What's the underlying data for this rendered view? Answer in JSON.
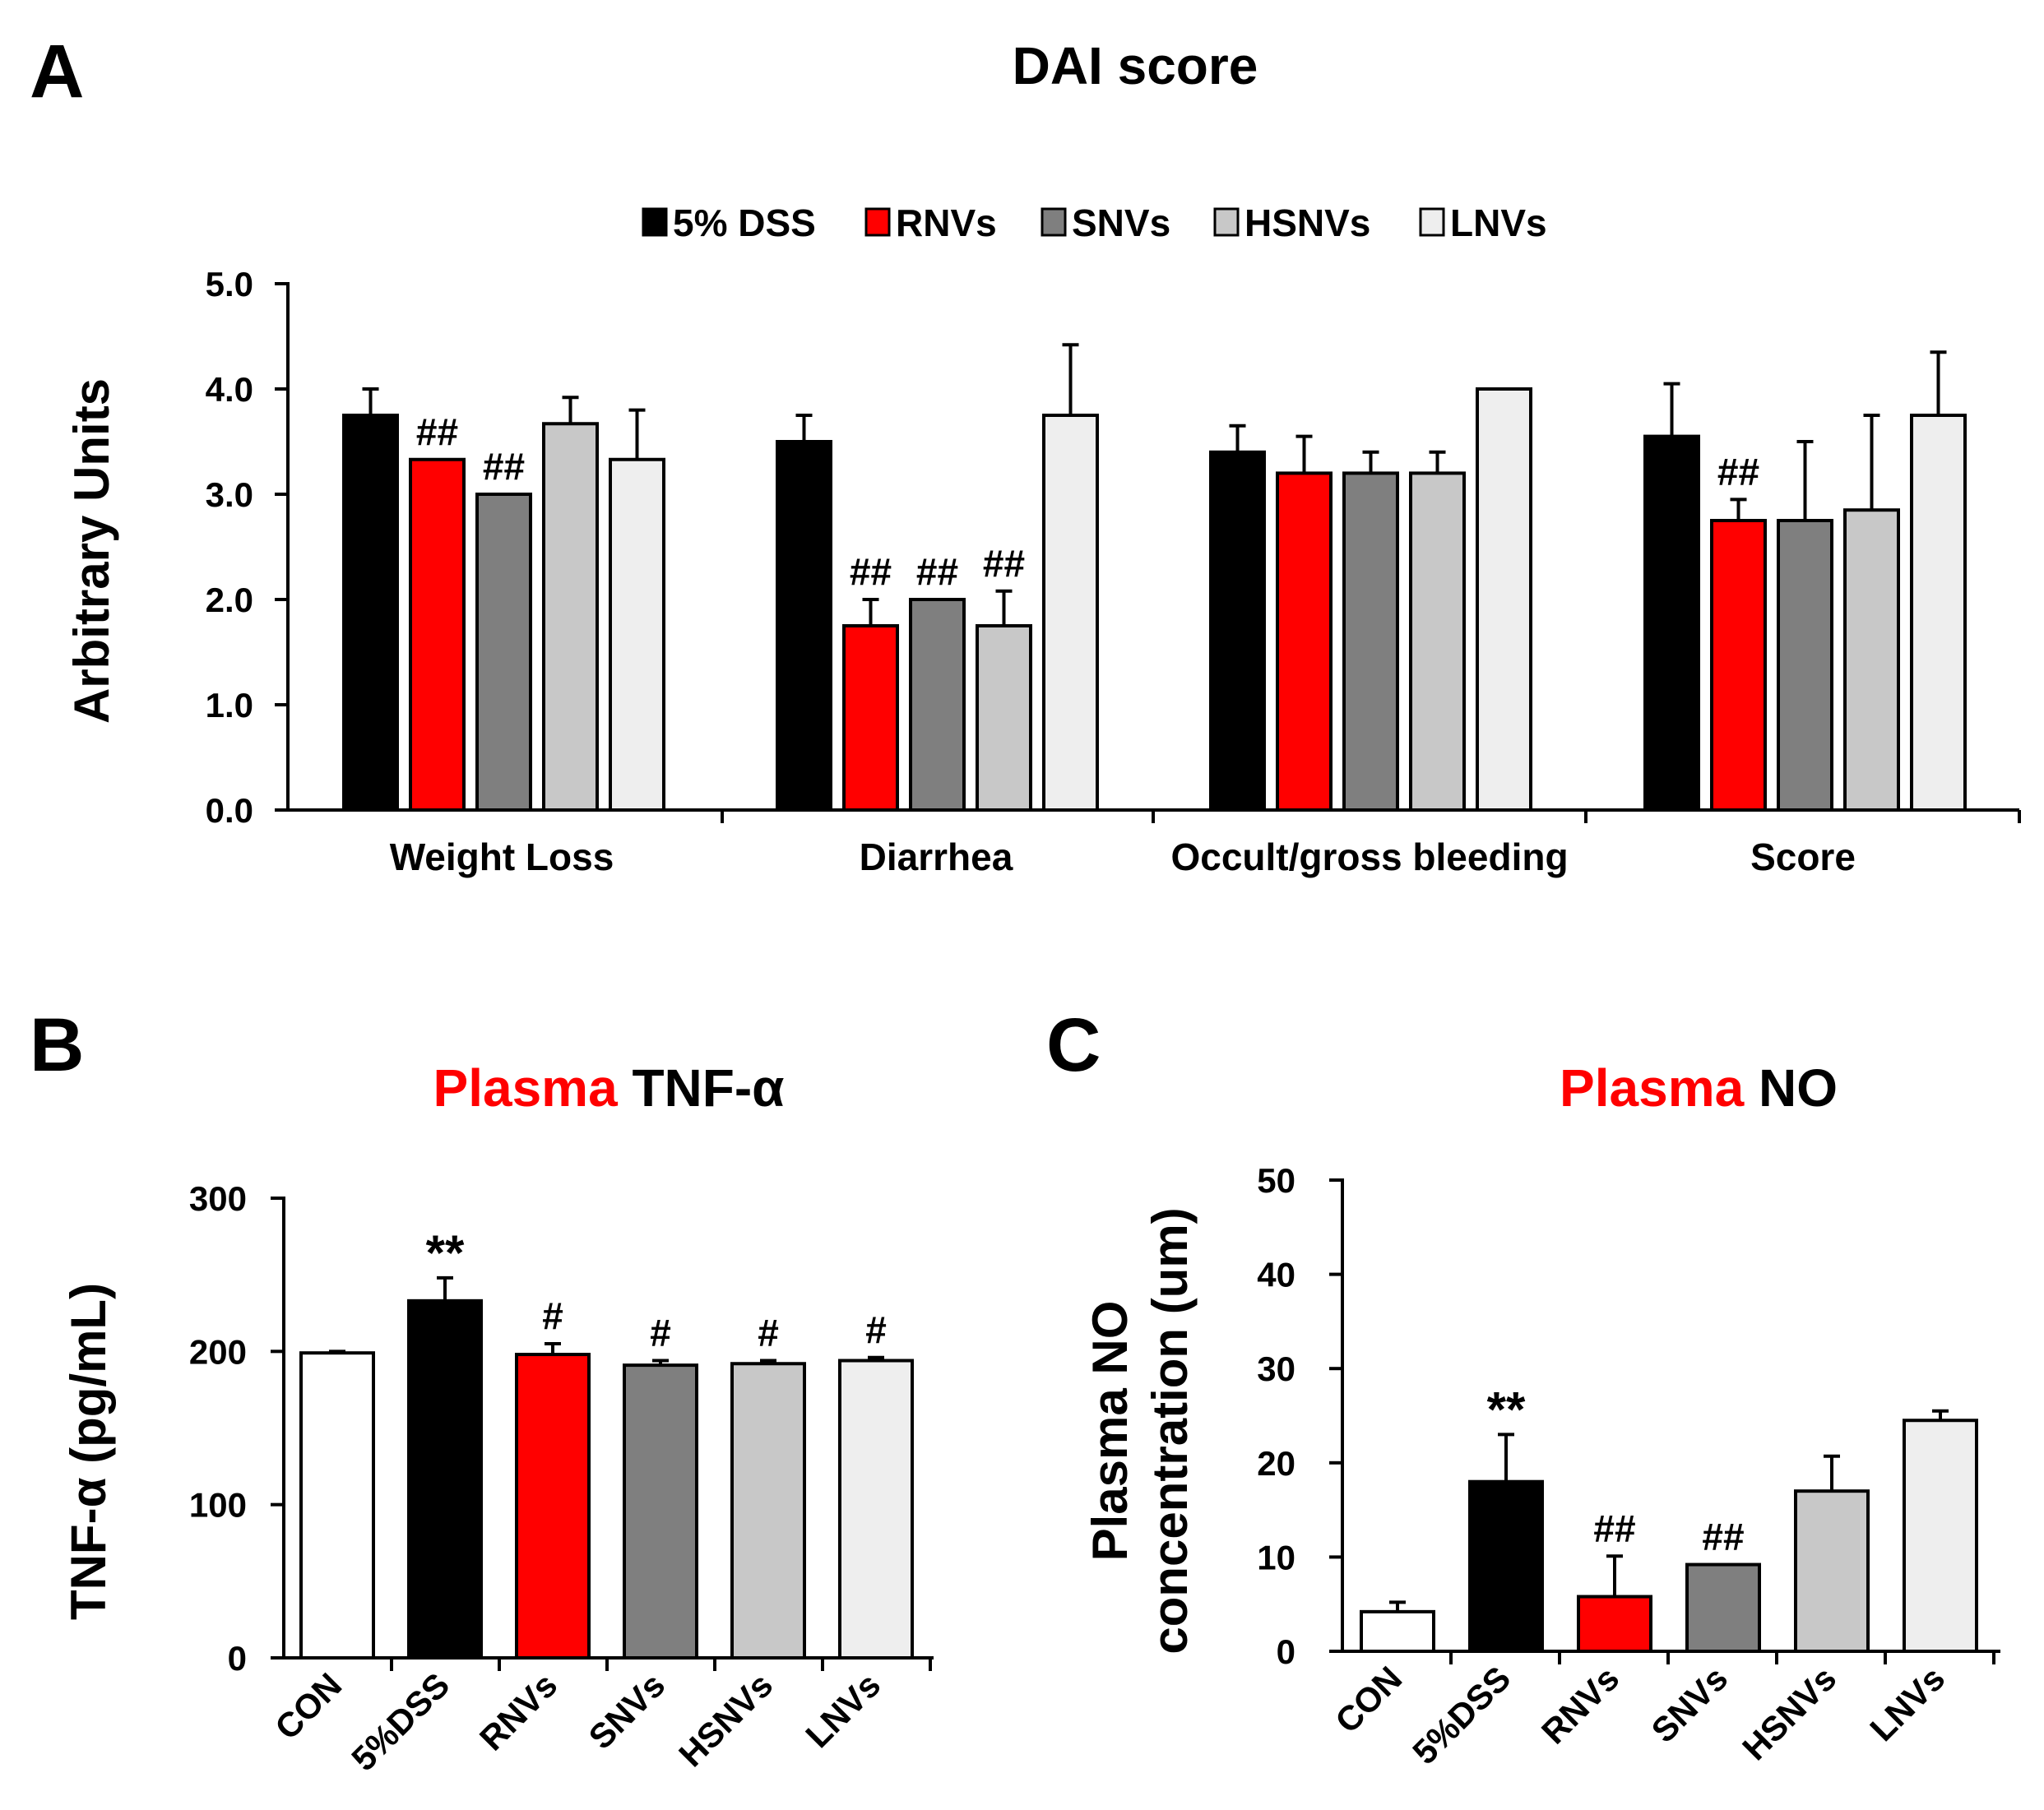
{
  "colors": {
    "5% DSS": "#000000",
    "RNVs": "#ff0000",
    "SNVs": "#7f7f7f",
    "HSNVs": "#c8c8c8",
    "LNVs": "#eeeeee",
    "CON": "#ffffff",
    "red_text": "#ff0000"
  },
  "chart_data": [
    {
      "id": "A",
      "type": "bar",
      "panel_label": "A",
      "title": "DAI score",
      "ylabel": "Arbitrary Units",
      "xlabel": "",
      "ylim": [
        0,
        5
      ],
      "yticks": [
        "0.0",
        "1.0",
        "2.0",
        "3.0",
        "4.0",
        "5.0"
      ],
      "legend_position": "top",
      "categories": [
        "Weight Loss",
        "Diarrhea",
        "Occult/gross bleeding",
        "Score"
      ],
      "series": [
        {
          "name": "5% DSS",
          "values": [
            3.75,
            3.5,
            3.4,
            3.55
          ],
          "errors": [
            0.25,
            0.25,
            0.25,
            0.5
          ],
          "marks": [
            "",
            "",
            "",
            ""
          ]
        },
        {
          "name": "RNVs",
          "values": [
            3.33,
            1.75,
            3.2,
            2.75
          ],
          "errors": [
            0,
            0.25,
            0.35,
            0.2
          ],
          "marks": [
            "##",
            "##",
            "",
            "##"
          ]
        },
        {
          "name": "SNVs",
          "values": [
            3.0,
            2.0,
            3.2,
            2.75
          ],
          "errors": [
            0,
            0,
            0.2,
            0.75
          ],
          "marks": [
            "##",
            "##",
            "",
            ""
          ]
        },
        {
          "name": "HSNVs",
          "values": [
            3.67,
            1.75,
            3.2,
            2.85
          ],
          "errors": [
            0.25,
            0.33,
            0.2,
            0.9
          ],
          "marks": [
            "",
            "##",
            "",
            ""
          ]
        },
        {
          "name": "LNVs",
          "values": [
            3.33,
            3.75,
            4.0,
            3.75
          ],
          "errors": [
            0.47,
            0.67,
            0,
            0.6
          ],
          "marks": [
            "",
            "",
            "",
            ""
          ]
        }
      ]
    },
    {
      "id": "B",
      "type": "bar",
      "panel_label": "B",
      "title_prefix": "Plasma",
      "title_main": "TNF-α",
      "ylabel": "TNF-α (pg/mL)",
      "xlabel": "",
      "ylim": [
        0,
        300
      ],
      "yticks": [
        "0",
        "100",
        "200",
        "300"
      ],
      "categories": [
        "CON",
        "5%DSS",
        "RNVs",
        "SNVs",
        "HSNVs",
        "LNVs"
      ],
      "values": [
        199,
        233,
        198,
        191,
        192,
        194
      ],
      "errors": [
        1,
        15,
        7,
        3,
        2,
        2
      ],
      "marks": [
        "",
        "**",
        "#",
        "#",
        "#",
        "#"
      ]
    },
    {
      "id": "C",
      "type": "bar",
      "panel_label": "C",
      "title_prefix": "Plasma",
      "title_main": "NO",
      "ylabel_lines": [
        "Plasma NO",
        "concentration  (um)"
      ],
      "xlabel": "",
      "ylim": [
        0,
        50
      ],
      "yticks": [
        "0",
        "10",
        "20",
        "30",
        "40",
        "50"
      ],
      "categories": [
        "CON",
        "5%DSS",
        "RNVs",
        "SNVs",
        "HSNVs",
        "LNVs"
      ],
      "values": [
        4.2,
        18.0,
        5.8,
        9.2,
        17.0,
        24.5
      ],
      "errors": [
        1.0,
        5.0,
        4.3,
        0,
        3.7,
        1.0
      ],
      "marks": [
        "",
        "**",
        "##",
        "##",
        "",
        ""
      ]
    }
  ]
}
